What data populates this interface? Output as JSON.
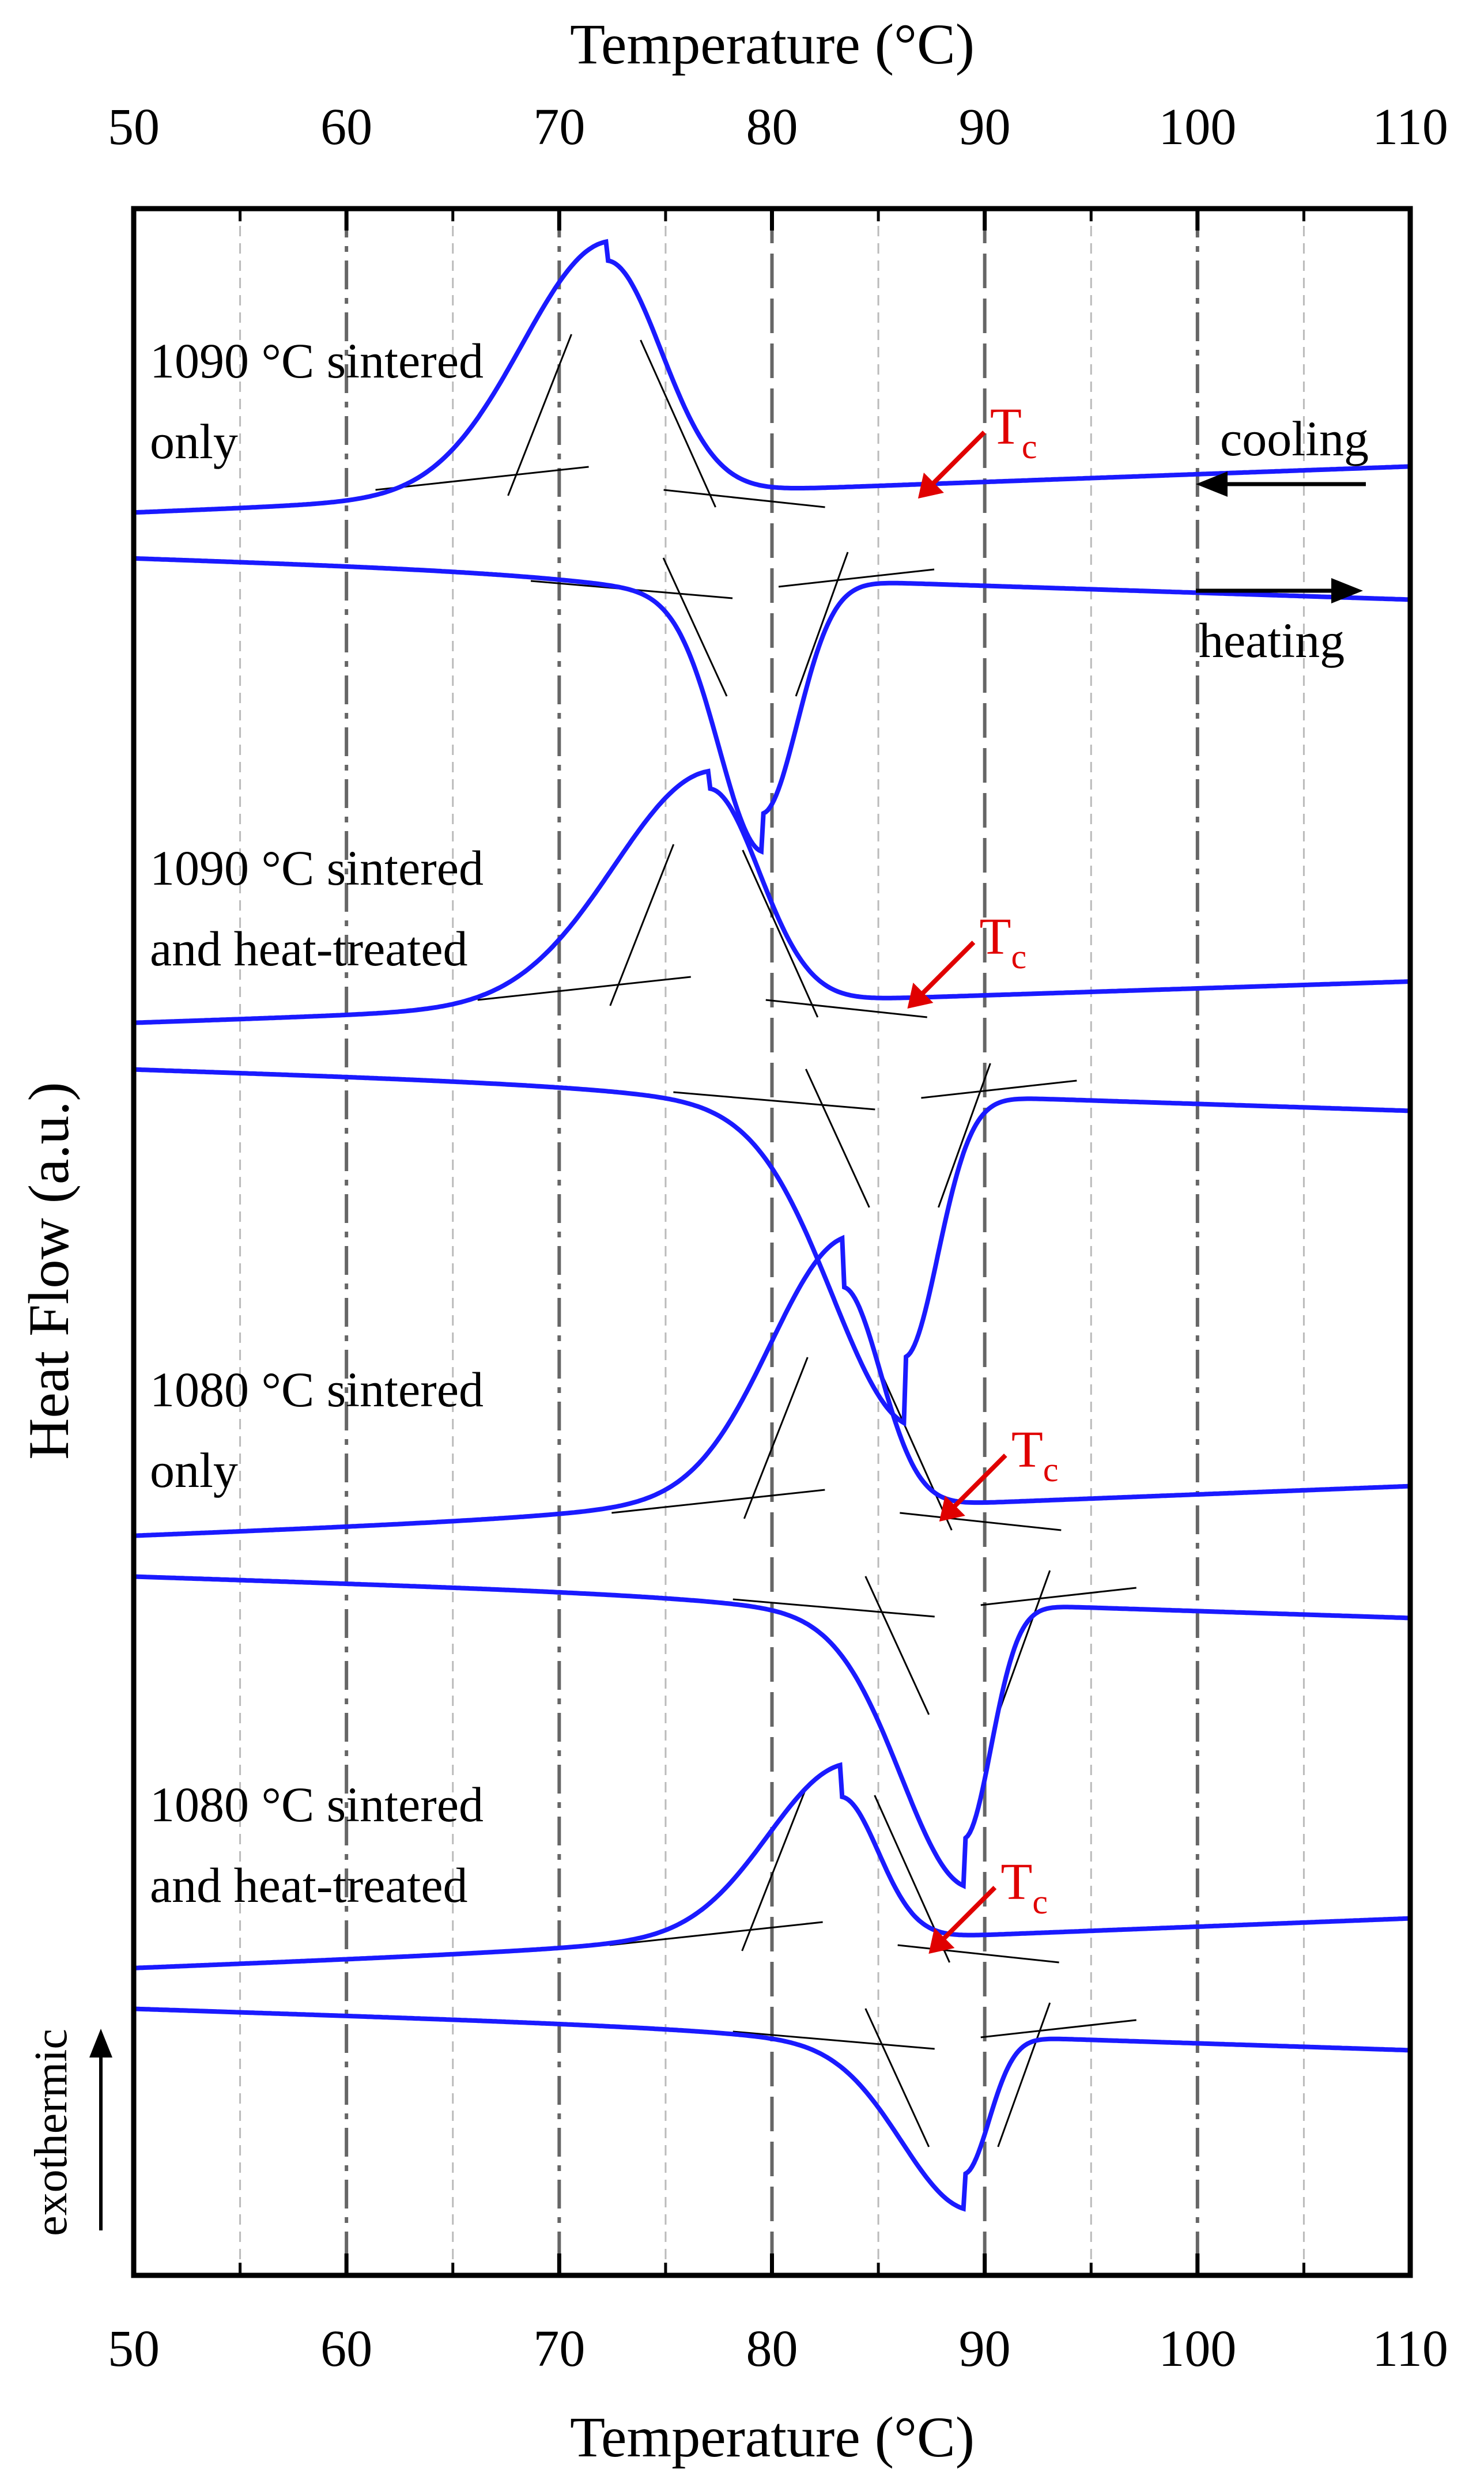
{
  "chart_data": {
    "type": "line",
    "title": "",
    "xlabel": "Temperature (°C)",
    "ylabel": "Heat Flow (a.u.)",
    "xlim": [
      50,
      110
    ],
    "xticks": [
      50,
      60,
      70,
      80,
      90,
      100,
      110
    ],
    "y_ticks_shown": false,
    "grid": "vertical",
    "annotations": {
      "tc_label": "T",
      "tc_sub": "c",
      "cooling": "cooling",
      "heating": "heating",
      "exothermic": "exothermic"
    },
    "samples": [
      {
        "label_line1": "1090 °C sintered",
        "label_line2": "only",
        "cooling": {
          "baseline": 0.0,
          "peak_T": 72.2,
          "peak_height": 0.85,
          "tc": 87.0
        },
        "heating": {
          "baseline": -0.25,
          "peak_T": 79.5,
          "peak_height": -0.85
        }
      },
      {
        "label_line1": "1090 °C sintered",
        "label_line2": "and heat-treated",
        "cooling": {
          "baseline": 0.0,
          "peak_T": 77.0,
          "peak_height": 0.78,
          "tc": 86.5
        },
        "heating": {
          "baseline": -0.25,
          "peak_T": 86.2,
          "peak_height": -0.95
        }
      },
      {
        "label_line1": "1080 °C sintered",
        "label_line2": "only",
        "cooling": {
          "baseline": 0.0,
          "peak_T": 83.3,
          "peak_height": 0.8,
          "tc": 88.0
        },
        "heating": {
          "baseline": -0.25,
          "peak_T": 89.0,
          "peak_height": -0.85
        }
      },
      {
        "label_line1": "1080 °C sintered",
        "label_line2": "and heat-treated",
        "cooling": {
          "baseline": 0.0,
          "peak_T": 83.2,
          "peak_height": 0.52,
          "tc": 87.5
        },
        "heating": {
          "baseline": -0.25,
          "peak_T": 89.0,
          "peak_height": -0.5
        }
      }
    ]
  }
}
